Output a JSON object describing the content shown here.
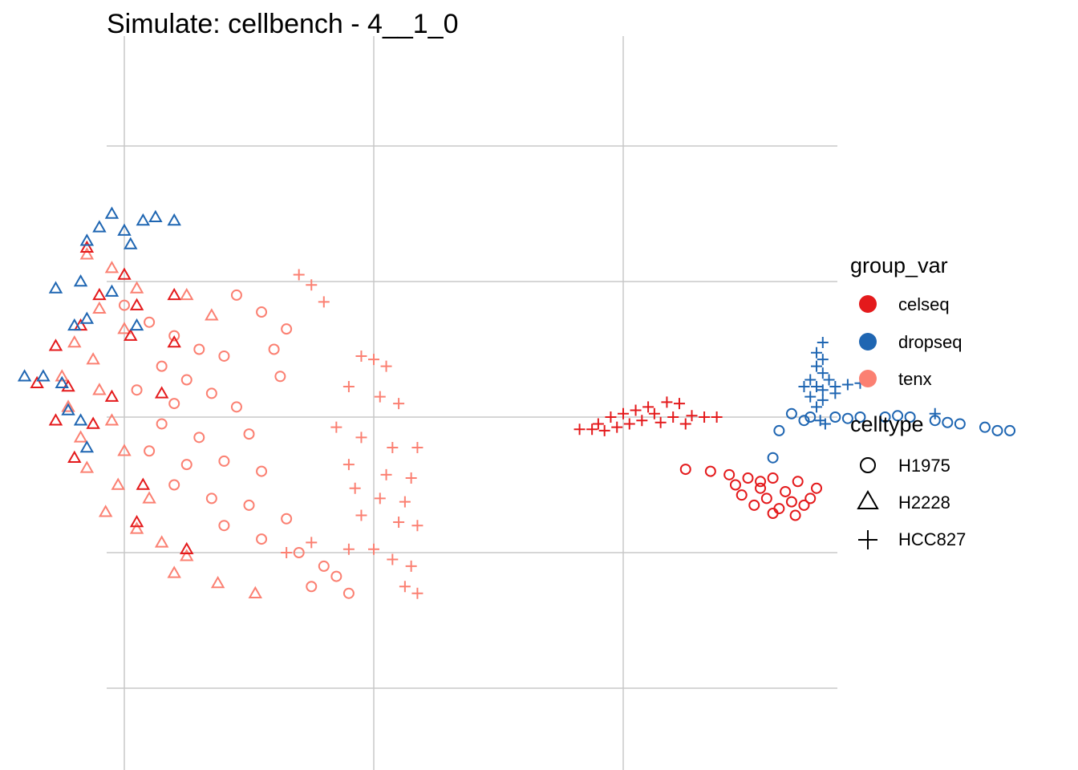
{
  "chart_data": {
    "type": "scatter",
    "title": "Simulate: cellbench - 4__1_0",
    "xlabel": "",
    "ylabel": "",
    "grid": true,
    "axes_ticks_labels": "none",
    "legend_position": "right",
    "colors": {
      "celseq": "#e41a1c",
      "dropseq": "#1f66b2",
      "tenx": "#fb8072"
    },
    "legends": [
      {
        "title": "group_var",
        "kind": "color",
        "entries": [
          "celseq",
          "dropseq",
          "tenx"
        ]
      },
      {
        "title": "celltype",
        "kind": "shape",
        "entries": [
          "H1975",
          "H2228",
          "HCC827"
        ],
        "shapes": [
          "circle",
          "triangle",
          "plus"
        ]
      }
    ],
    "series": [
      {
        "group": "tenx",
        "celltype": "H1975",
        "shape": "circle",
        "points": [
          [
            -2.0,
            1.65
          ],
          [
            -1.8,
            1.4
          ],
          [
            -1.6,
            1.2
          ],
          [
            -1.4,
            1.0
          ],
          [
            -1.2,
            0.9
          ],
          [
            -1.7,
            0.75
          ],
          [
            -1.5,
            0.55
          ],
          [
            -1.9,
            0.4
          ],
          [
            -1.6,
            0.2
          ],
          [
            -1.3,
            0.35
          ],
          [
            -1.1,
            0.15
          ],
          [
            -1.7,
            -0.1
          ],
          [
            -1.4,
            -0.3
          ],
          [
            -1.0,
            -0.25
          ],
          [
            -1.8,
            -0.5
          ],
          [
            -1.5,
            -0.7
          ],
          [
            -1.2,
            -0.65
          ],
          [
            -0.9,
            -0.8
          ],
          [
            -1.6,
            -1.0
          ],
          [
            -1.3,
            -1.2
          ],
          [
            -1.0,
            -1.3
          ],
          [
            -0.7,
            -1.5
          ],
          [
            -1.2,
            -1.6
          ],
          [
            -0.9,
            -1.8
          ],
          [
            -0.6,
            -2.0
          ],
          [
            -0.4,
            -2.2
          ],
          [
            -0.3,
            -2.35
          ],
          [
            -0.5,
            -2.5
          ],
          [
            -0.2,
            -2.6
          ],
          [
            -1.1,
            1.8
          ],
          [
            -0.9,
            1.55
          ],
          [
            -0.7,
            1.3
          ],
          [
            -0.8,
            1.0
          ],
          [
            -0.75,
            0.6
          ]
        ]
      },
      {
        "group": "tenx",
        "celltype": "H2228",
        "shape": "triangle",
        "points": [
          [
            -2.3,
            2.4
          ],
          [
            -2.1,
            2.2
          ],
          [
            -1.9,
            1.9
          ],
          [
            -2.2,
            1.6
          ],
          [
            -2.0,
            1.3
          ],
          [
            -2.4,
            1.1
          ],
          [
            -2.25,
            0.85
          ],
          [
            -2.5,
            0.6
          ],
          [
            -2.2,
            0.4
          ],
          [
            -2.45,
            0.15
          ],
          [
            -2.1,
            -0.05
          ],
          [
            -2.35,
            -0.3
          ],
          [
            -2.0,
            -0.5
          ],
          [
            -2.3,
            -0.75
          ],
          [
            -2.05,
            -1.0
          ],
          [
            -1.8,
            -1.2
          ],
          [
            -2.15,
            -1.4
          ],
          [
            -1.9,
            -1.65
          ],
          [
            -1.7,
            -1.85
          ],
          [
            -1.5,
            -2.05
          ],
          [
            -1.6,
            -2.3
          ],
          [
            -1.25,
            -2.45
          ],
          [
            -0.95,
            -2.6
          ],
          [
            -1.5,
            1.8
          ],
          [
            -1.3,
            1.5
          ]
        ]
      },
      {
        "group": "tenx",
        "celltype": "HCC827",
        "shape": "plus",
        "points": [
          [
            -0.6,
            2.1
          ],
          [
            -0.5,
            1.95
          ],
          [
            -0.4,
            1.7
          ],
          [
            -0.1,
            0.9
          ],
          [
            0.0,
            0.85
          ],
          [
            0.1,
            0.75
          ],
          [
            -0.2,
            0.45
          ],
          [
            0.05,
            0.3
          ],
          [
            0.2,
            0.2
          ],
          [
            -0.3,
            -0.15
          ],
          [
            -0.1,
            -0.3
          ],
          [
            0.15,
            -0.45
          ],
          [
            0.35,
            -0.45
          ],
          [
            -0.2,
            -0.7
          ],
          [
            0.1,
            -0.85
          ],
          [
            0.3,
            -0.9
          ],
          [
            -0.15,
            -1.05
          ],
          [
            0.05,
            -1.2
          ],
          [
            0.25,
            -1.25
          ],
          [
            -0.1,
            -1.45
          ],
          [
            0.2,
            -1.55
          ],
          [
            0.35,
            -1.6
          ],
          [
            -0.5,
            -1.85
          ],
          [
            -0.2,
            -1.95
          ],
          [
            0.0,
            -1.95
          ],
          [
            0.15,
            -2.1
          ],
          [
            0.3,
            -2.2
          ],
          [
            -0.7,
            -2.0
          ],
          [
            0.25,
            -2.5
          ],
          [
            0.35,
            -2.6
          ]
        ]
      },
      {
        "group": "celseq",
        "celltype": "H1975",
        "shape": "circle",
        "points": [
          [
            2.5,
            -0.77
          ],
          [
            2.7,
            -0.8
          ],
          [
            2.85,
            -0.85
          ],
          [
            3.0,
            -0.9
          ],
          [
            3.2,
            -0.9
          ],
          [
            3.4,
            -0.95
          ],
          [
            2.9,
            -1.0
          ],
          [
            3.1,
            -1.05
          ],
          [
            3.3,
            -1.1
          ],
          [
            2.95,
            -1.15
          ],
          [
            3.15,
            -1.2
          ],
          [
            3.35,
            -1.25
          ],
          [
            3.05,
            -1.3
          ],
          [
            3.25,
            -1.35
          ],
          [
            3.45,
            -1.3
          ],
          [
            3.2,
            -1.42
          ],
          [
            3.38,
            -1.45
          ],
          [
            3.5,
            -1.2
          ],
          [
            3.55,
            -1.05
          ],
          [
            3.1,
            -0.95
          ]
        ]
      },
      {
        "group": "celseq",
        "celltype": "H2228",
        "shape": "triangle",
        "points": [
          [
            -2.3,
            2.5
          ],
          [
            -2.0,
            2.1
          ],
          [
            -2.2,
            1.8
          ],
          [
            -1.9,
            1.65
          ],
          [
            -1.6,
            1.8
          ],
          [
            -2.35,
            1.35
          ],
          [
            -1.95,
            1.2
          ],
          [
            -2.55,
            1.05
          ],
          [
            -1.6,
            1.1
          ],
          [
            -2.7,
            0.5
          ],
          [
            -2.45,
            0.45
          ],
          [
            -2.1,
            0.3
          ],
          [
            -1.7,
            0.35
          ],
          [
            -2.55,
            -0.05
          ],
          [
            -2.25,
            -0.1
          ],
          [
            -2.4,
            -0.6
          ],
          [
            -1.85,
            -1.0
          ],
          [
            -1.9,
            -1.55
          ],
          [
            -1.5,
            -1.95
          ]
        ]
      },
      {
        "group": "celseq",
        "celltype": "HCC827",
        "shape": "plus",
        "points": [
          [
            1.8,
            -0.1
          ],
          [
            1.9,
            0.0
          ],
          [
            2.0,
            0.05
          ],
          [
            2.1,
            0.1
          ],
          [
            2.2,
            0.15
          ],
          [
            2.35,
            0.22
          ],
          [
            2.45,
            0.2
          ],
          [
            2.25,
            0.05
          ],
          [
            2.4,
            0.0
          ],
          [
            2.55,
            0.02
          ],
          [
            2.65,
            0.0
          ],
          [
            2.75,
            0.0
          ],
          [
            2.15,
            -0.05
          ],
          [
            2.05,
            -0.1
          ],
          [
            1.95,
            -0.15
          ],
          [
            1.85,
            -0.2
          ],
          [
            1.75,
            -0.18
          ],
          [
            1.65,
            -0.18
          ],
          [
            2.3,
            -0.08
          ],
          [
            2.5,
            -0.1
          ]
        ]
      },
      {
        "group": "dropseq",
        "celltype": "H1975",
        "shape": "circle",
        "points": [
          [
            3.35,
            0.05
          ],
          [
            3.5,
            0.0
          ],
          [
            3.7,
            0.0
          ],
          [
            3.9,
            0.0
          ],
          [
            4.1,
            0.0
          ],
          [
            4.3,
            0.0
          ],
          [
            4.5,
            -0.05
          ],
          [
            4.7,
            -0.1
          ],
          [
            4.9,
            -0.15
          ],
          [
            5.0,
            -0.2
          ],
          [
            5.1,
            -0.2
          ],
          [
            3.25,
            -0.2
          ],
          [
            3.45,
            -0.05
          ],
          [
            3.8,
            -0.02
          ],
          [
            4.2,
            0.02
          ],
          [
            4.6,
            -0.08
          ],
          [
            3.2,
            -0.6
          ]
        ]
      },
      {
        "group": "dropseq",
        "celltype": "H2228",
        "shape": "triangle",
        "points": [
          [
            -2.2,
            2.8
          ],
          [
            -2.0,
            2.75
          ],
          [
            -1.85,
            2.9
          ],
          [
            -2.1,
            3.0
          ],
          [
            -1.75,
            2.95
          ],
          [
            -2.3,
            2.6
          ],
          [
            -1.95,
            2.55
          ],
          [
            -2.35,
            2.0
          ],
          [
            -2.1,
            1.85
          ],
          [
            -2.55,
            1.9
          ],
          [
            -2.3,
            1.45
          ],
          [
            -1.9,
            1.35
          ],
          [
            -2.4,
            1.35
          ],
          [
            -2.8,
            0.6
          ],
          [
            -2.65,
            0.6
          ],
          [
            -2.5,
            0.5
          ],
          [
            -2.45,
            0.1
          ],
          [
            -2.35,
            -0.05
          ],
          [
            -2.3,
            -0.45
          ],
          [
            -1.6,
            2.9
          ]
        ]
      },
      {
        "group": "dropseq",
        "celltype": "HCC827",
        "shape": "plus",
        "points": [
          [
            3.6,
            1.1
          ],
          [
            3.55,
            0.95
          ],
          [
            3.6,
            0.85
          ],
          [
            3.55,
            0.75
          ],
          [
            3.6,
            0.65
          ],
          [
            3.5,
            0.55
          ],
          [
            3.65,
            0.55
          ],
          [
            3.55,
            0.45
          ],
          [
            3.6,
            0.4
          ],
          [
            3.7,
            0.35
          ],
          [
            3.5,
            0.3
          ],
          [
            3.6,
            0.25
          ],
          [
            3.55,
            0.15
          ],
          [
            3.7,
            0.45
          ],
          [
            3.8,
            0.48
          ],
          [
            3.9,
            0.5
          ],
          [
            3.45,
            0.45
          ],
          [
            3.58,
            -0.05
          ],
          [
            3.62,
            -0.1
          ],
          [
            4.5,
            0.05
          ]
        ]
      }
    ]
  }
}
